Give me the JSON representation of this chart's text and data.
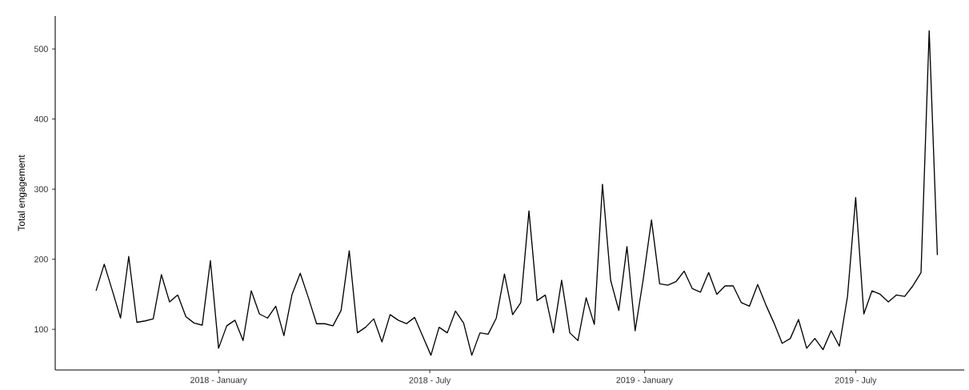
{
  "chart_data": {
    "type": "line",
    "ylabel": "Total engagement",
    "color": "#000000",
    "x": [
      "2017-09-18",
      "2017-09-25",
      "2017-10-02",
      "2017-10-09",
      "2017-10-16",
      "2017-10-23",
      "2017-10-30",
      "2017-11-06",
      "2017-11-13",
      "2017-11-20",
      "2017-11-27",
      "2017-12-04",
      "2017-12-11",
      "2017-12-18",
      "2017-12-25",
      "2018-01-01",
      "2018-01-08",
      "2018-01-15",
      "2018-01-22",
      "2018-01-29",
      "2018-02-05",
      "2018-02-12",
      "2018-02-19",
      "2018-02-26",
      "2018-03-05",
      "2018-03-12",
      "2018-03-19",
      "2018-03-26",
      "2018-04-02",
      "2018-04-09",
      "2018-04-16",
      "2018-04-23",
      "2018-04-30",
      "2018-05-07",
      "2018-05-14",
      "2018-05-21",
      "2018-05-28",
      "2018-06-04",
      "2018-06-11",
      "2018-06-18",
      "2018-06-25",
      "2018-07-02",
      "2018-07-09",
      "2018-07-16",
      "2018-07-23",
      "2018-07-30",
      "2018-08-06",
      "2018-08-13",
      "2018-08-20",
      "2018-08-27",
      "2018-09-03",
      "2018-09-10",
      "2018-09-17",
      "2018-09-24",
      "2018-10-01",
      "2018-10-08",
      "2018-10-15",
      "2018-10-22",
      "2018-10-29",
      "2018-11-05",
      "2018-11-12",
      "2018-11-19",
      "2018-11-26",
      "2018-12-03",
      "2018-12-10",
      "2018-12-17",
      "2018-12-24",
      "2018-12-31",
      "2019-01-07",
      "2019-01-14",
      "2019-01-21",
      "2019-01-28",
      "2019-02-04",
      "2019-02-11",
      "2019-02-18",
      "2019-02-25",
      "2019-03-04",
      "2019-03-11",
      "2019-03-18",
      "2019-03-25",
      "2019-04-01",
      "2019-04-08",
      "2019-04-15",
      "2019-04-22",
      "2019-04-29",
      "2019-05-06",
      "2019-05-13",
      "2019-05-20",
      "2019-05-27",
      "2019-06-03",
      "2019-06-10",
      "2019-06-17",
      "2019-06-24",
      "2019-07-01",
      "2019-07-08",
      "2019-07-15",
      "2019-07-22",
      "2019-07-29",
      "2019-08-05",
      "2019-08-12",
      "2019-08-19",
      "2019-08-26",
      "2019-09-02",
      "2019-09-09"
    ],
    "values": [
      155,
      193,
      155,
      116,
      204,
      110,
      112,
      115,
      178,
      139,
      149,
      118,
      109,
      106,
      198,
      73,
      105,
      113,
      84,
      155,
      122,
      116,
      133,
      91,
      150,
      180,
      145,
      108,
      108,
      105,
      127,
      212,
      95,
      103,
      115,
      82,
      121,
      113,
      108,
      117,
      90,
      63,
      103,
      95,
      126,
      109,
      63,
      95,
      93,
      116,
      179,
      121,
      138,
      269,
      141,
      149,
      95,
      170,
      95,
      84,
      145,
      107,
      307,
      170,
      127,
      218,
      98,
      172,
      256,
      165,
      163,
      168,
      183,
      158,
      153,
      181,
      150,
      162,
      162,
      138,
      133,
      164,
      135,
      109,
      80,
      87,
      114,
      73,
      87,
      71,
      98,
      76,
      147,
      288,
      122,
      155,
      150,
      139,
      149,
      147,
      162,
      181,
      526,
      206
    ],
    "xlim": [
      "2017-08-14",
      "2019-10-02"
    ],
    "ylim": [
      42,
      547
    ],
    "xticks": [
      {
        "value": "2018-01-01",
        "label": "2018 - January"
      },
      {
        "value": "2018-07-01",
        "label": "2018 - July"
      },
      {
        "value": "2019-01-01",
        "label": "2019 - January"
      },
      {
        "value": "2019-07-01",
        "label": "2019 - July"
      }
    ],
    "yticks": [
      100,
      200,
      300,
      400,
      500
    ]
  }
}
